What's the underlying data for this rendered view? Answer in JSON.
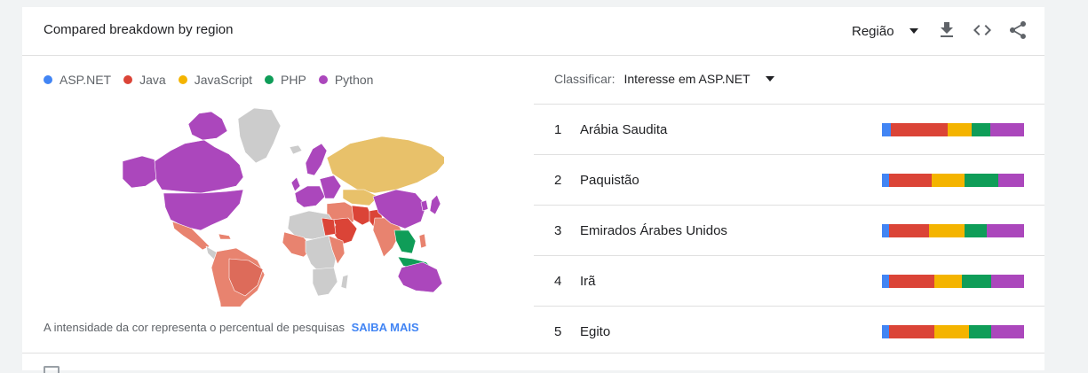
{
  "header": {
    "title": "Compared breakdown by region",
    "region_label": "Região",
    "icons": [
      "download-icon",
      "embed-code-icon",
      "share-icon"
    ]
  },
  "colors": {
    "asp": "#4285f4",
    "java": "#db4437",
    "javascript": "#f4b400",
    "php": "#0f9d58",
    "python": "#ab47bc",
    "link": "#4285f4"
  },
  "legend": [
    {
      "label": "ASP.NET",
      "color": "#4285f4"
    },
    {
      "label": "Java",
      "color": "#db4437"
    },
    {
      "label": "JavaScript",
      "color": "#f4b400"
    },
    {
      "label": "PHP",
      "color": "#0f9d58"
    },
    {
      "label": "Python",
      "color": "#ab47bc"
    }
  ],
  "map": {
    "note": "A intensidade da cor representa o percentual de pesquisas",
    "learn_more": "SAIBA MAIS"
  },
  "sort": {
    "label": "Classificar:",
    "value": "Interesse em ASP.NET"
  },
  "regions": [
    {
      "rank": "1",
      "name": "Arábia Saudita",
      "shares": [
        6,
        40,
        17,
        13,
        24
      ]
    },
    {
      "rank": "2",
      "name": "Paquistão",
      "shares": [
        5,
        30,
        23,
        24,
        18
      ]
    },
    {
      "rank": "3",
      "name": "Emirados Árabes Unidos",
      "shares": [
        5,
        28,
        25,
        16,
        26
      ]
    },
    {
      "rank": "4",
      "name": "Irã",
      "shares": [
        5,
        32,
        19,
        21,
        23
      ]
    },
    {
      "rank": "5",
      "name": "Egito",
      "shares": [
        5,
        32,
        24,
        16,
        23
      ]
    }
  ]
}
